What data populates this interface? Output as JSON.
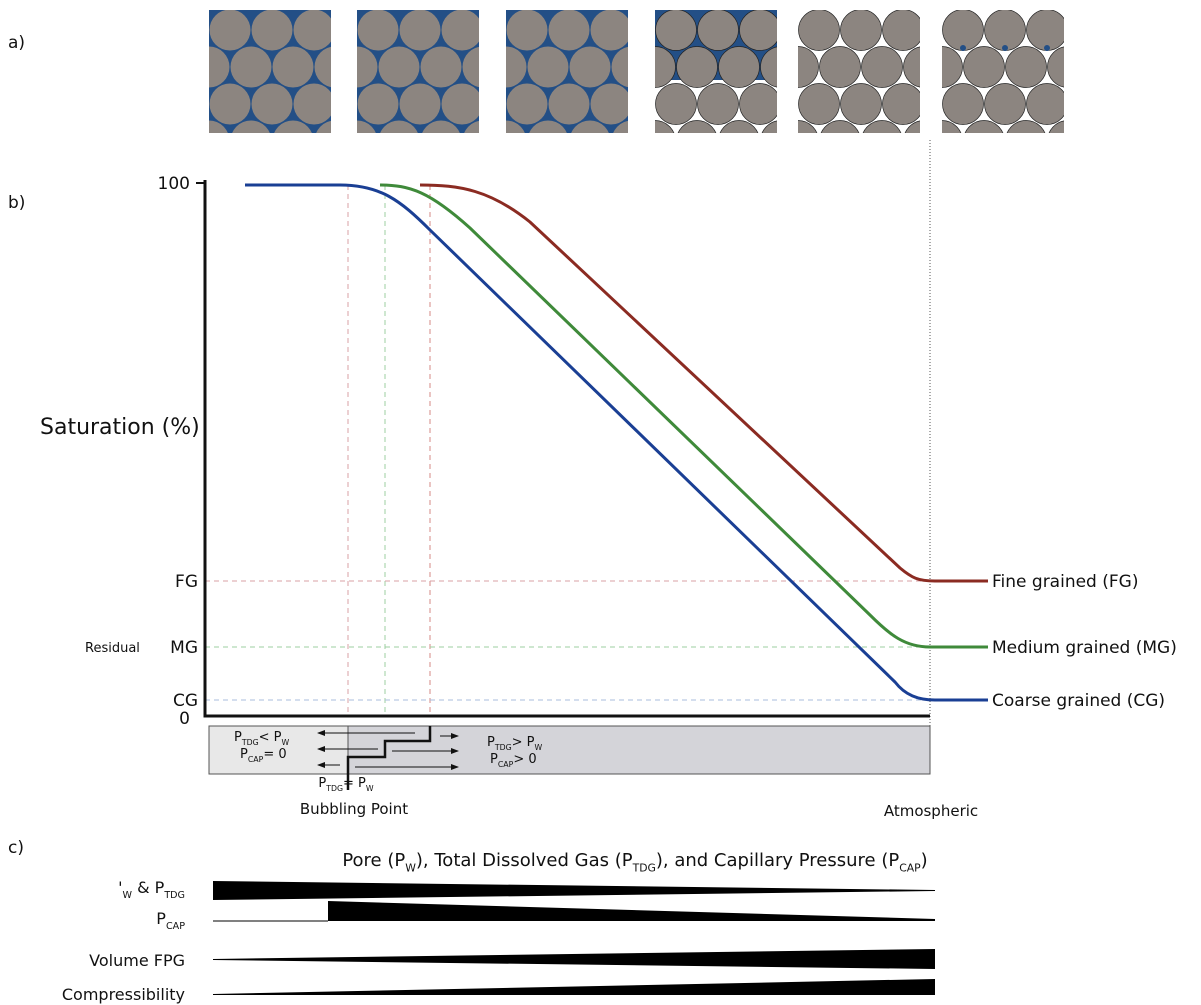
{
  "panels": {
    "a": "a)",
    "b": "b)",
    "c": "c)"
  },
  "axis": {
    "y_label": "Saturation (%)",
    "top": "100",
    "bottom": "0",
    "fg": "FG",
    "mg": "MG",
    "cg": "CG",
    "residual": "Residual"
  },
  "curves": [
    {
      "label": "Fine grained (FG)",
      "color": "#8b2b22"
    },
    {
      "label": "Medium grained (MG)",
      "color": "#3f8a3a"
    },
    {
      "label": "Coarse grained (CG)",
      "color": "#1a3f94"
    }
  ],
  "pressure_box": {
    "left_1": [
      "P",
      "TDG",
      "<  P",
      "W"
    ],
    "left_2": [
      "P",
      "CAP",
      "= 0"
    ],
    "right_1": [
      "P",
      "TDG",
      "> P",
      "W"
    ],
    "right_2": [
      "P",
      "CAP",
      "> 0"
    ],
    "bubble": [
      "P",
      "TDG",
      "= P",
      "W"
    ],
    "bubble_label": "Bubbling Point",
    "atmospheric": "Atmospheric"
  },
  "bars_title": [
    "Pore (P",
    "W",
    "), Total Dissolved Gas (P",
    "TDG",
    "), and Capillary Pressure (P",
    "CAP",
    ")"
  ],
  "bars": [
    {
      "label": [
        "'",
        "W",
        " & P",
        "TDG"
      ]
    },
    {
      "label": [
        "P",
        "CAP"
      ]
    },
    {
      "label": [
        "Volume FPG"
      ]
    },
    {
      "label": [
        "Compressibility"
      ]
    }
  ]
}
